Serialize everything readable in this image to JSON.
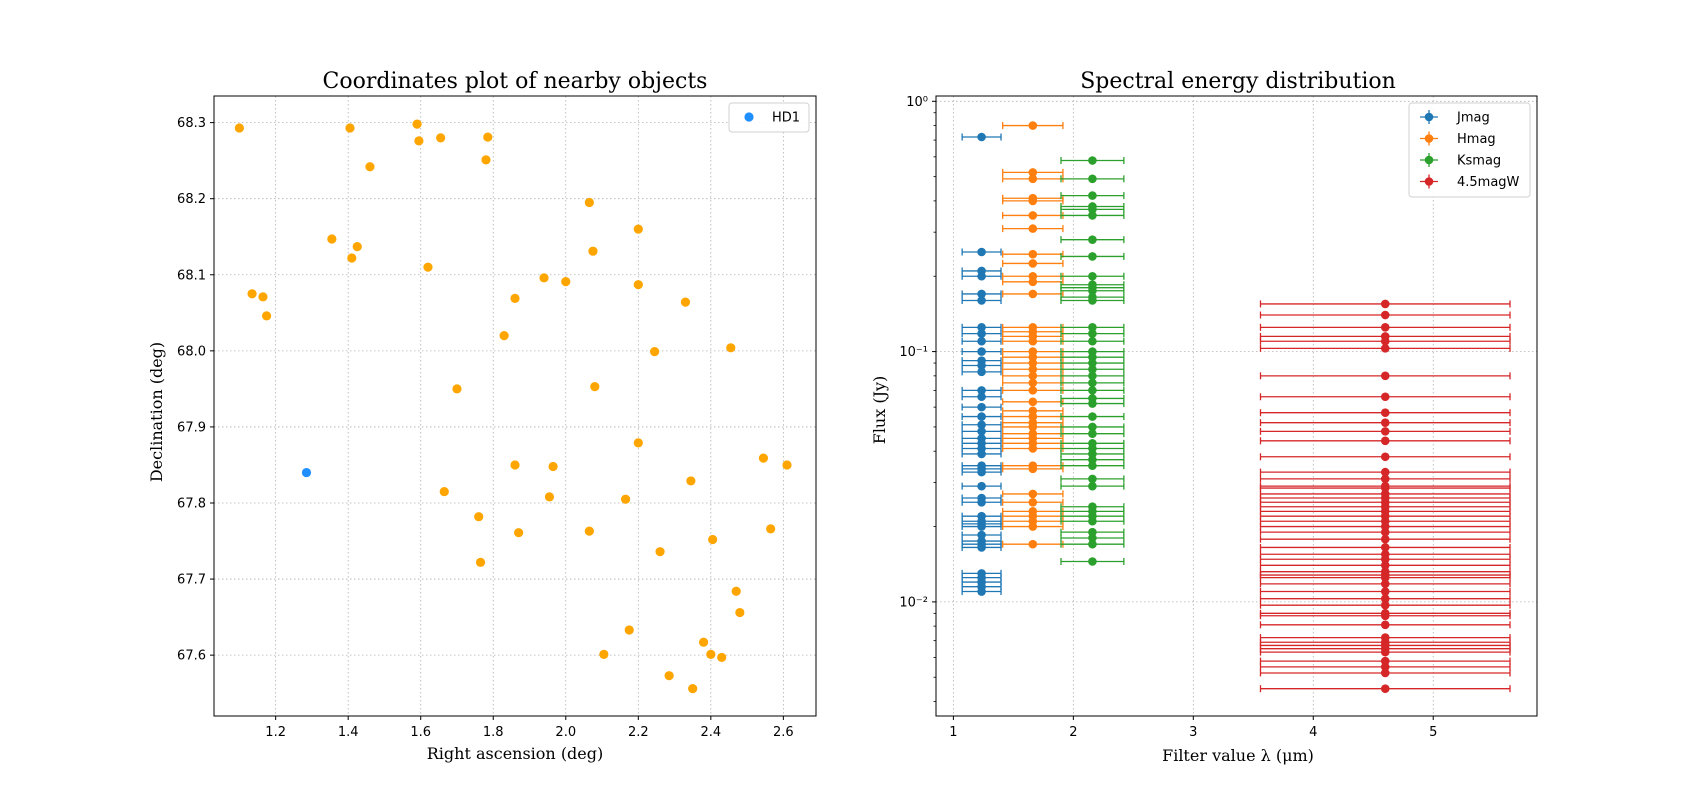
{
  "chart_data": [
    {
      "type": "scatter",
      "title": "Coordinates plot of nearby objects",
      "xlabel": "Right ascension (deg)",
      "ylabel": "Declination (deg)",
      "xlim": [
        1.03,
        2.69
      ],
      "ylim": [
        67.52,
        68.335
      ],
      "xticks": [
        "1.2",
        "1.4",
        "1.6",
        "1.8",
        "2.0",
        "2.2",
        "2.4",
        "2.6"
      ],
      "xtick_values": [
        1.2,
        1.4,
        1.6,
        1.8,
        2.0,
        2.2,
        2.4,
        2.6
      ],
      "yticks": [
        "67.6",
        "67.7",
        "67.8",
        "67.9",
        "68.0",
        "68.1",
        "68.2",
        "68.3"
      ],
      "ytick_values": [
        67.6,
        67.7,
        67.8,
        67.9,
        68.0,
        68.1,
        68.2,
        68.3
      ],
      "grid": true,
      "legend_position": "top-right",
      "series": [
        {
          "name": "HD1",
          "color": "#1f8fff",
          "in_legend": true,
          "points": [
            [
              1.285,
              67.84
            ]
          ]
        },
        {
          "name": "",
          "color": "#ffa500",
          "in_legend": false,
          "points": [
            [
              1.1,
              68.293
            ],
            [
              1.405,
              68.293
            ],
            [
              1.59,
              68.298
            ],
            [
              1.595,
              68.276
            ],
            [
              1.655,
              68.28
            ],
            [
              1.785,
              68.281
            ],
            [
              1.78,
              68.251
            ],
            [
              1.46,
              68.242
            ],
            [
              2.065,
              68.195
            ],
            [
              2.2,
              68.16
            ],
            [
              1.355,
              68.147
            ],
            [
              1.425,
              68.137
            ],
            [
              1.41,
              68.122
            ],
            [
              1.62,
              68.11
            ],
            [
              2.075,
              68.131
            ],
            [
              1.135,
              68.075
            ],
            [
              1.165,
              68.071
            ],
            [
              1.175,
              68.046
            ],
            [
              1.94,
              68.096
            ],
            [
              2.0,
              68.091
            ],
            [
              1.86,
              68.069
            ],
            [
              2.2,
              68.087
            ],
            [
              2.33,
              68.064
            ],
            [
              1.83,
              68.02
            ],
            [
              2.245,
              67.999
            ],
            [
              2.455,
              68.004
            ],
            [
              1.7,
              67.95
            ],
            [
              2.08,
              67.953
            ],
            [
              2.2,
              67.879
            ],
            [
              2.545,
              67.859
            ],
            [
              2.61,
              67.85
            ],
            [
              1.86,
              67.85
            ],
            [
              1.965,
              67.848
            ],
            [
              2.345,
              67.829
            ],
            [
              1.665,
              67.815
            ],
            [
              1.955,
              67.808
            ],
            [
              2.165,
              67.805
            ],
            [
              1.76,
              67.782
            ],
            [
              1.87,
              67.761
            ],
            [
              2.065,
              67.763
            ],
            [
              2.405,
              67.752
            ],
            [
              2.565,
              67.766
            ],
            [
              2.26,
              67.736
            ],
            [
              1.765,
              67.722
            ],
            [
              2.47,
              67.684
            ],
            [
              2.48,
              67.656
            ],
            [
              2.175,
              67.633
            ],
            [
              2.38,
              67.617
            ],
            [
              2.105,
              67.601
            ],
            [
              2.4,
              67.601
            ],
            [
              2.43,
              67.597
            ],
            [
              2.285,
              67.573
            ],
            [
              2.35,
              67.556
            ]
          ]
        }
      ]
    },
    {
      "type": "scatter",
      "title": "Spectral energy distribution",
      "xlabel": "Filter value λ (μm)",
      "ylabel": "Flux (Jy)",
      "yscale": "log",
      "xlim": [
        0.855,
        5.865
      ],
      "ylim": [
        0.0035,
        1.05
      ],
      "xticks": [
        "1",
        "2",
        "3",
        "4",
        "5"
      ],
      "xtick_values": [
        1,
        2,
        3,
        4,
        5
      ],
      "yticks": [
        "10⁰",
        "10⁻¹",
        "10⁻²"
      ],
      "ytick_values": [
        1,
        0.1,
        0.01
      ],
      "grid": true,
      "legend_position": "top-right",
      "series": [
        {
          "name": "Jmag",
          "color": "#1f77b4",
          "x": 1.235,
          "xerr": 0.162,
          "y": [
            0.72,
            0.25,
            0.21,
            0.2,
            0.17,
            0.16,
            0.125,
            0.118,
            0.11,
            0.1,
            0.092,
            0.088,
            0.083,
            0.07,
            0.066,
            0.06,
            0.055,
            0.051,
            0.048,
            0.045,
            0.043,
            0.041,
            0.039,
            0.035,
            0.034,
            0.033,
            0.029,
            0.026,
            0.025,
            0.022,
            0.021,
            0.0205,
            0.02,
            0.0185,
            0.0175,
            0.017,
            0.0165,
            0.013,
            0.0125,
            0.012,
            0.0115,
            0.011
          ]
        },
        {
          "name": "Hmag",
          "color": "#ff7f0e",
          "x": 1.662,
          "xerr": 0.251,
          "y": [
            0.8,
            0.52,
            0.49,
            0.41,
            0.4,
            0.35,
            0.31,
            0.245,
            0.225,
            0.2,
            0.19,
            0.17,
            0.125,
            0.12,
            0.115,
            0.11,
            0.1,
            0.095,
            0.09,
            0.085,
            0.08,
            0.075,
            0.07,
            0.063,
            0.058,
            0.055,
            0.052,
            0.05,
            0.047,
            0.045,
            0.043,
            0.041,
            0.035,
            0.034,
            0.027,
            0.025,
            0.023,
            0.022,
            0.021,
            0.02,
            0.017
          ]
        },
        {
          "name": "Ksmag",
          "color": "#2ca02c",
          "x": 2.159,
          "xerr": 0.262,
          "y": [
            0.58,
            0.49,
            0.42,
            0.38,
            0.37,
            0.35,
            0.28,
            0.24,
            0.2,
            0.185,
            0.18,
            0.175,
            0.165,
            0.16,
            0.125,
            0.118,
            0.11,
            0.1,
            0.095,
            0.09,
            0.085,
            0.08,
            0.075,
            0.07,
            0.065,
            0.062,
            0.055,
            0.05,
            0.047,
            0.043,
            0.041,
            0.039,
            0.037,
            0.035,
            0.031,
            0.029,
            0.024,
            0.023,
            0.022,
            0.021,
            0.019,
            0.018,
            0.017,
            0.0145
          ]
        },
        {
          "name": "4.5magW",
          "color": "#d62728",
          "x": 4.6,
          "xerr": 1.04,
          "y": [
            0.155,
            0.14,
            0.125,
            0.115,
            0.11,
            0.103,
            0.08,
            0.066,
            0.057,
            0.052,
            0.048,
            0.044,
            0.038,
            0.033,
            0.031,
            0.029,
            0.0285,
            0.027,
            0.026,
            0.025,
            0.024,
            0.023,
            0.022,
            0.021,
            0.02,
            0.019,
            0.0178,
            0.0165,
            0.0155,
            0.0148,
            0.014,
            0.0132,
            0.0128,
            0.0125,
            0.0118,
            0.011,
            0.0103,
            0.0097,
            0.009,
            0.0088,
            0.0081,
            0.0072,
            0.0069,
            0.0067,
            0.0065,
            0.0063,
            0.0058,
            0.0055,
            0.0052,
            0.0045
          ]
        }
      ]
    }
  ]
}
